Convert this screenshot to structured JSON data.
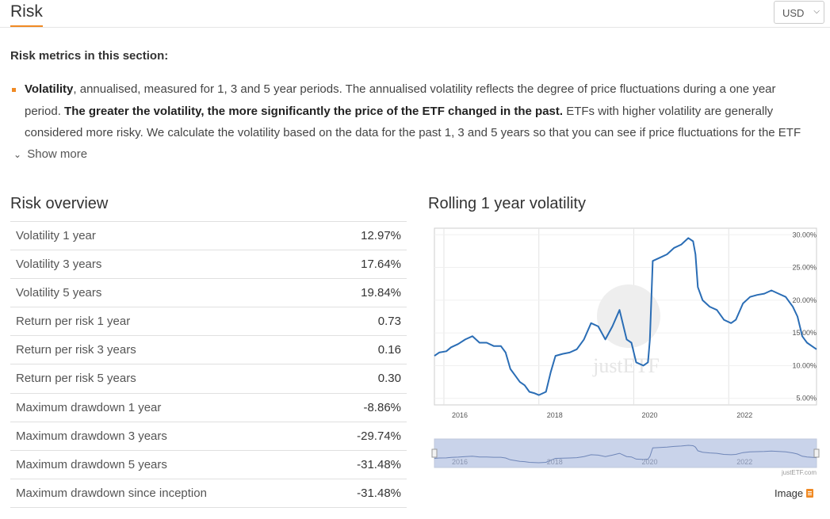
{
  "page": {
    "title": "Risk",
    "currency": "USD"
  },
  "metrics": {
    "heading": "Risk metrics in this section:",
    "volatility_term": "Volatility",
    "text_part1": ", annualised, measured for 1, 3 and 5 year periods. The annualised volatility reflects the degree of price fluctuations during a one year period. ",
    "text_bold": "The greater the volatility, the more significantly the price of the ETF changed in the past.",
    "text_part2": " ETFs with higher volatility are generally considered more risky. We calculate the volatility based on the data for the past 1, 3 and 5 years so that you can see if price fluctuations for the ETF",
    "show_more": "Show more"
  },
  "risk_overview": {
    "title": "Risk overview",
    "rows": [
      {
        "label": "Volatility 1 year",
        "value": "12.97%"
      },
      {
        "label": "Volatility 3 years",
        "value": "17.64%"
      },
      {
        "label": "Volatility 5 years",
        "value": "19.84%"
      },
      {
        "label": "Return per risk 1 year",
        "value": "0.73"
      },
      {
        "label": "Return per risk 3 years",
        "value": "0.16"
      },
      {
        "label": "Return per risk 5 years",
        "value": "0.30"
      },
      {
        "label": "Maximum drawdown 1 year",
        "value": "-8.86%"
      },
      {
        "label": "Maximum drawdown 3 years",
        "value": "-29.74%"
      },
      {
        "label": "Maximum drawdown 5 years",
        "value": "-31.48%"
      },
      {
        "label": "Maximum drawdown since inception",
        "value": "-31.48%"
      }
    ]
  },
  "chart_section": {
    "title": "Rolling 1 year volatility",
    "credit": "justETF.com",
    "watermark": "justETF",
    "image_link": "Image",
    "line_color": "#2a6db5",
    "navigator_fill": "#c9d3ea"
  },
  "chart_data": {
    "type": "line",
    "title": "Rolling 1 year volatility",
    "xlabel": "",
    "ylabel": "",
    "x_ticks": [
      "2016",
      "2018",
      "2020",
      "2022"
    ],
    "y_ticks": [
      "5.00%",
      "10.00%",
      "15.00%",
      "20.00%",
      "25.00%",
      "30.00%"
    ],
    "ylim": [
      4,
      31
    ],
    "xlim": [
      2015.7,
      2023.75
    ],
    "grid": true,
    "series": [
      {
        "x": [
          2015.7,
          2015.8,
          2015.95,
          2016.05,
          2016.2,
          2016.35,
          2016.5,
          2016.65,
          2016.8,
          2016.95,
          2017.1,
          2017.2,
          2017.3,
          2017.4,
          2017.5,
          2017.6,
          2017.7,
          2017.8,
          2017.9,
          2018.05,
          2018.15,
          2018.25,
          2018.4,
          2018.55,
          2018.7,
          2018.85,
          2019.0,
          2019.15,
          2019.3,
          2019.45,
          2019.6,
          2019.75,
          2019.85,
          2019.95,
          2020.1,
          2020.2,
          2020.24,
          2020.3,
          2020.45,
          2020.6,
          2020.75,
          2020.9,
          2021.05,
          2021.15,
          2021.2,
          2021.25,
          2021.35,
          2021.5,
          2021.65,
          2021.8,
          2021.95,
          2022.05,
          2022.2,
          2022.35,
          2022.5,
          2022.65,
          2022.8,
          2022.95,
          2023.1,
          2023.25,
          2023.35,
          2023.45,
          2023.55,
          2023.65,
          2023.75
        ],
        "y": [
          11.5,
          12.0,
          12.2,
          12.8,
          13.3,
          14.0,
          14.5,
          13.5,
          13.5,
          13.0,
          13.0,
          12.0,
          9.5,
          8.5,
          7.5,
          7.0,
          6.0,
          5.8,
          5.5,
          6.0,
          9.0,
          11.5,
          11.8,
          12.0,
          12.5,
          14.0,
          16.5,
          16.0,
          14.0,
          16.0,
          18.5,
          14.0,
          13.5,
          10.5,
          10.0,
          10.5,
          14.0,
          26.0,
          26.5,
          27.0,
          28.0,
          28.5,
          29.5,
          29.0,
          27.0,
          22.0,
          20.0,
          19.0,
          18.5,
          17.0,
          16.5,
          17.0,
          19.5,
          20.5,
          20.8,
          21.0,
          21.5,
          21.0,
          20.5,
          19.0,
          17.5,
          14.5,
          13.5,
          13.0,
          12.5
        ]
      }
    ]
  }
}
